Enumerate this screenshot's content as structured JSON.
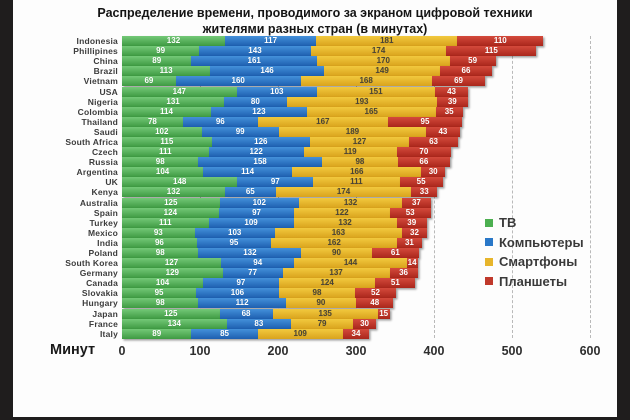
{
  "title": "Распределение времени, проводимого за экраном цифровой техники жителями разных стран (в минутах)",
  "chart_data": {
    "type": "bar",
    "orientation": "horizontal",
    "stacked": true,
    "title": "Распределение времени, проводимого за экраном цифровой техники жителями разных стран (в минутах)",
    "xlabel": "Минут",
    "xlim": [
      0,
      600
    ],
    "x_ticks": [
      0,
      100,
      200,
      300,
      400,
      500,
      600
    ],
    "grid": "dashed-vertical",
    "legend_position": "right",
    "categories": [
      "Indonesia",
      "Phillipines",
      "China",
      "Brazil",
      "Vietnam",
      "USA",
      "Nigeria",
      "Colombia",
      "Thailand",
      "Saudi",
      "South Africa",
      "Czech",
      "Russia",
      "Argentina",
      "UK",
      "Kenya",
      "Australia",
      "Spain",
      "Turkey",
      "Mexico",
      "India",
      "Poland",
      "South Korea",
      "Germany",
      "Canada",
      "Slovakia",
      "Hungary",
      "Japan",
      "France",
      "Italy"
    ],
    "series": [
      {
        "name": "ТВ",
        "color": "#4caf50",
        "color_top": "#74c978",
        "color_bottom": "#3e9a42",
        "label_color": "#ffffff",
        "values": [
          132,
          99,
          89,
          113,
          69,
          147,
          131,
          114,
          78,
          102,
          115,
          111,
          98,
          104,
          148,
          132,
          125,
          124,
          111,
          93,
          96,
          98,
          127,
          129,
          104,
          95,
          98,
          125,
          134,
          89
        ]
      },
      {
        "name": "Компьютеры",
        "color": "#2a78c8",
        "color_top": "#4491da",
        "color_bottom": "#1d5fb0",
        "label_color": "#ffffff",
        "values": [
          117,
          143,
          161,
          146,
          160,
          103,
          80,
          123,
          96,
          99,
          126,
          122,
          158,
          114,
          97,
          65,
          102,
          97,
          109,
          103,
          95,
          132,
          94,
          77,
          97,
          106,
          112,
          68,
          83,
          85
        ]
      },
      {
        "name": "Смартфоны",
        "color": "#e7b52b",
        "color_top": "#f2c93e",
        "color_bottom": "#d9a31c",
        "label_color": "#4a4436",
        "values": [
          181,
          174,
          170,
          149,
          168,
          151,
          193,
          165,
          167,
          189,
          127,
          119,
          98,
          166,
          111,
          174,
          132,
          122,
          132,
          163,
          162,
          90,
          144,
          137,
          124,
          98,
          90,
          135,
          79,
          109
        ]
      },
      {
        "name": "Планшеты",
        "color": "#c0392b",
        "color_top": "#d44a3c",
        "color_bottom": "#aa261b",
        "label_color": "#ffffff",
        "values": [
          110,
          115,
          59,
          66,
          69,
          43,
          39,
          35,
          95,
          43,
          63,
          70,
          66,
          30,
          55,
          33,
          37,
          53,
          39,
          32,
          31,
          61,
          14,
          36,
          51,
          52,
          48,
          15,
          30,
          34
        ]
      }
    ]
  }
}
